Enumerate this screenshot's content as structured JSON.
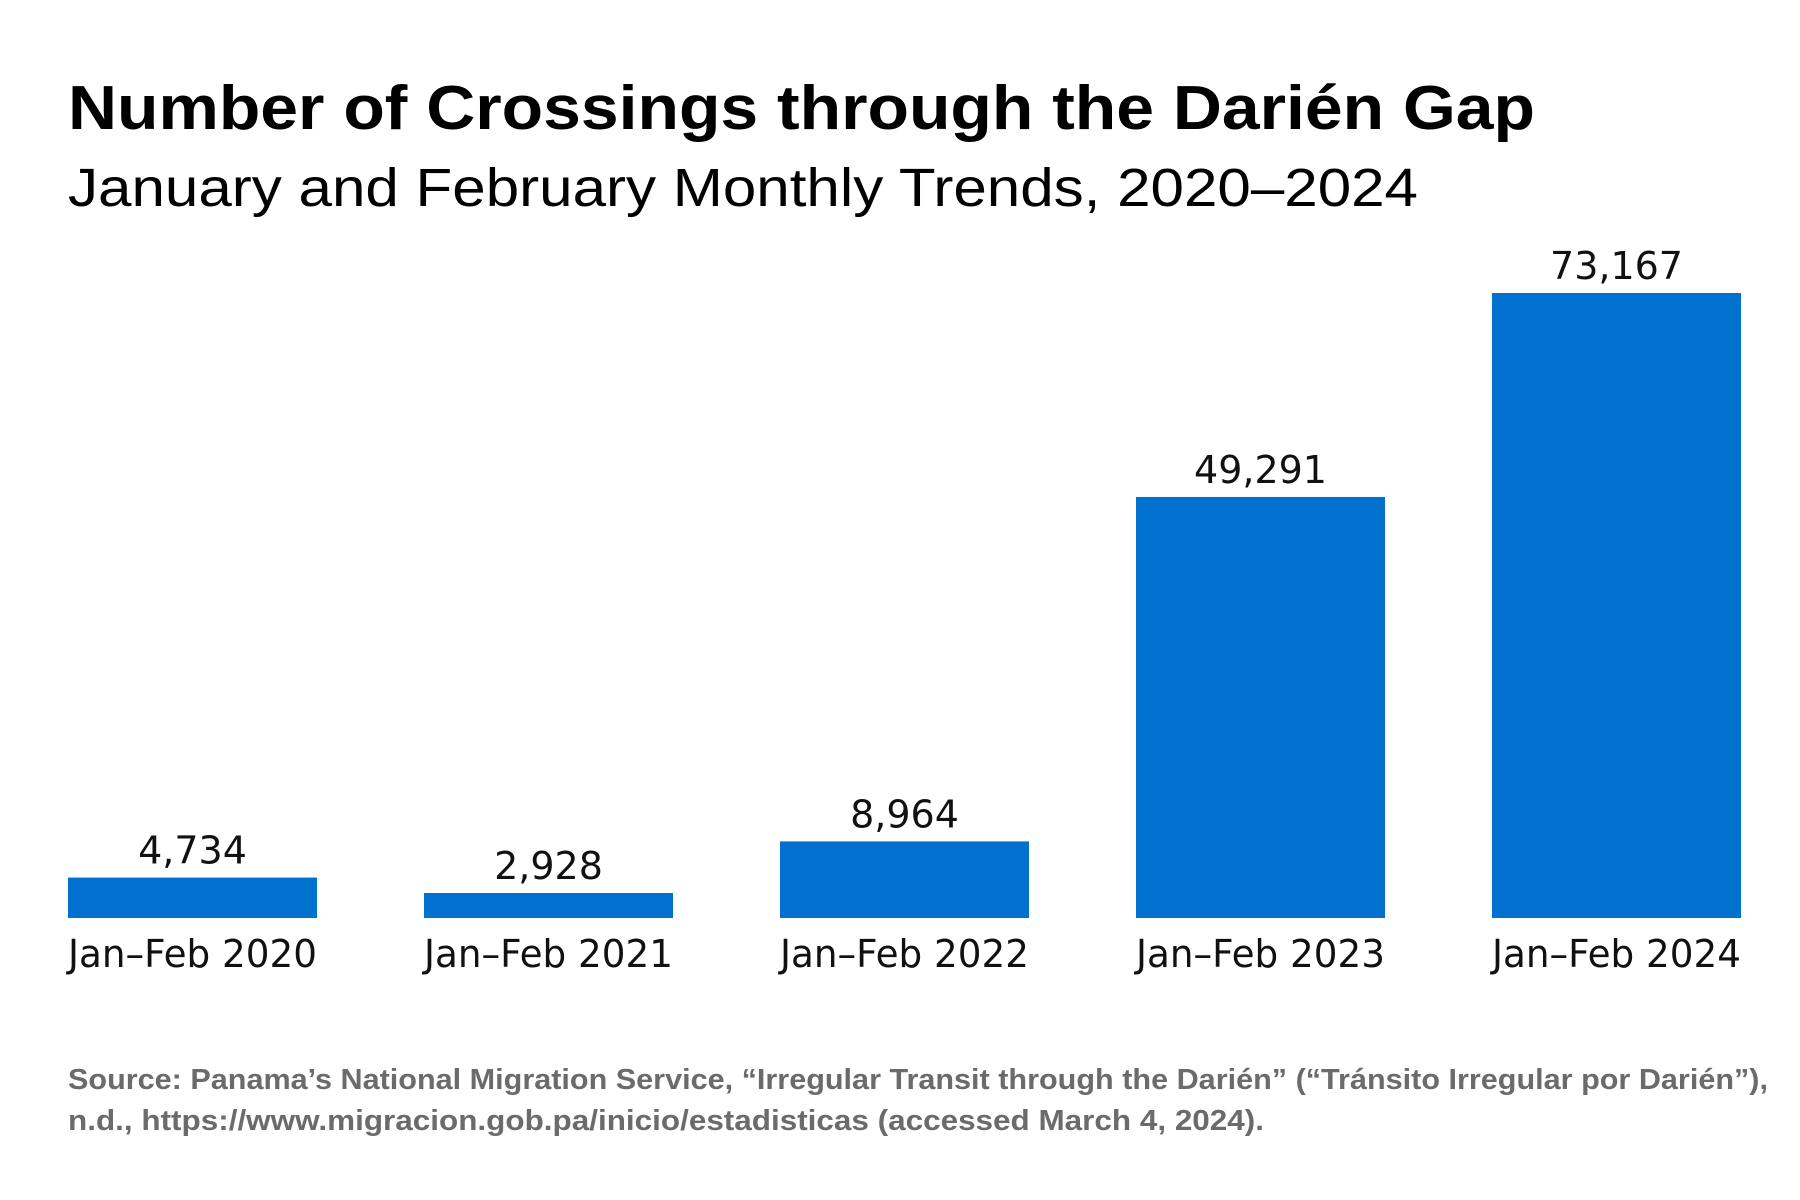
{
  "chart_data": {
    "type": "bar",
    "title": "Number of Crossings through the Darién Gap",
    "subtitle": "January and February Monthly Trends, 2020–2024",
    "categories": [
      "Jan–Feb 2020",
      "Jan–Feb 2021",
      "Jan–Feb 2022",
      "Jan–Feb 2023",
      "Jan–Feb 2024"
    ],
    "values": [
      4734,
      2928,
      8964,
      49291,
      73167
    ],
    "data_labels": [
      "4,734",
      "2,928",
      "8,964",
      "49,291",
      "73,167"
    ],
    "xlabel": "",
    "ylabel": "",
    "ylim": [
      0,
      73167
    ],
    "grid": false,
    "bar_color": "#0071ce",
    "source_lines": [
      "Source: Panama’s National Migration Service, “Irregular Transit through the Darién” (“Tránsito Irregular por Darién”),",
      "n.d., https://www.migracion.gob.pa/inicio/estadisticas (accessed March 4, 2024)."
    ]
  }
}
